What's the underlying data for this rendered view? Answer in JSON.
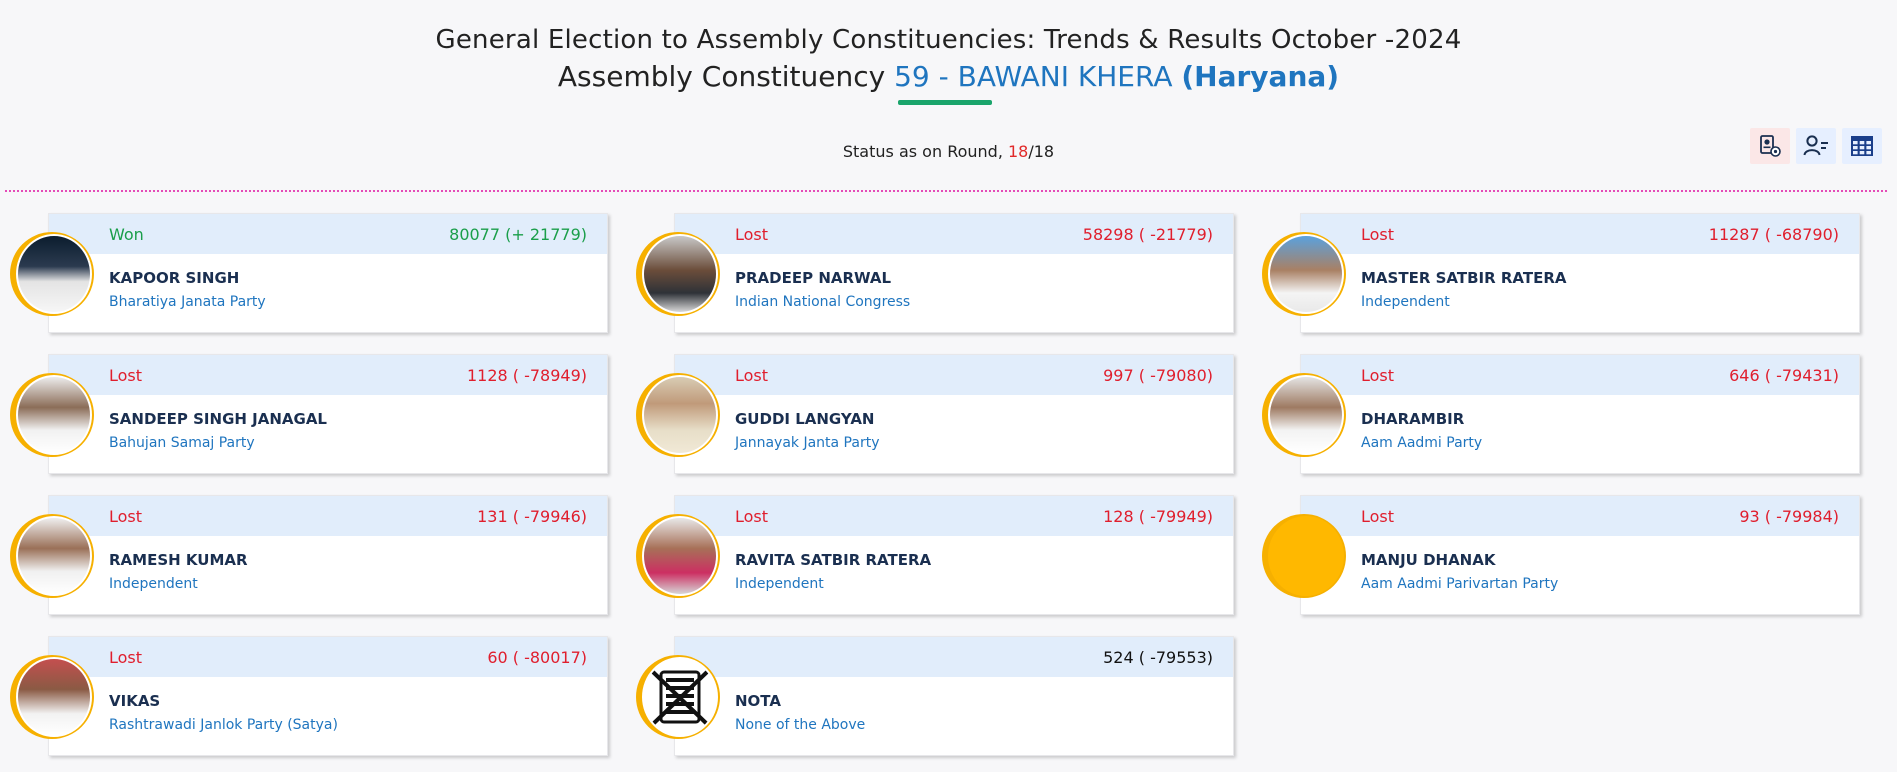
{
  "header": {
    "title_line1": "General Election to Assembly Constituencies: Trends & Results October -2024",
    "title_prefix": "Assembly Constituency",
    "constituency": "59 - BAWANI KHERA",
    "state": "(Haryana)"
  },
  "status": {
    "label": "Status as on Round,",
    "current_round": "18",
    "separator": "/",
    "total_rounds": "18"
  },
  "toolbar": {
    "icons": [
      "chart-settings-icon",
      "person-list-icon",
      "table-grid-icon"
    ]
  },
  "colors": {
    "won": "#1a9e4a",
    "lost": "#e01e2d",
    "accent_blue": "#1f75bf",
    "avatar_ring": "#f6b000",
    "band": "#e1edfb"
  },
  "candidates": [
    {
      "status": "Won",
      "votes": "80077 (+ 21779)",
      "name": "KAPOOR SINGH",
      "party": "Bharatiya Janata Party"
    },
    {
      "status": "Lost",
      "votes": "58298 ( -21779)",
      "name": "PRADEEP NARWAL",
      "party": "Indian National Congress"
    },
    {
      "status": "Lost",
      "votes": "11287 ( -68790)",
      "name": "MASTER SATBIR RATERA",
      "party": "Independent"
    },
    {
      "status": "Lost",
      "votes": "1128 ( -78949)",
      "name": "SANDEEP SINGH JANAGAL",
      "party": "Bahujan Samaj Party"
    },
    {
      "status": "Lost",
      "votes": "997 ( -79080)",
      "name": "GUDDI LANGYAN",
      "party": "Jannayak Janta Party"
    },
    {
      "status": "Lost",
      "votes": "646 ( -79431)",
      "name": "DHARAMBIR",
      "party": "Aam Aadmi Party"
    },
    {
      "status": "Lost",
      "votes": "131 ( -79946)",
      "name": "RAMESH KUMAR",
      "party": "Independent"
    },
    {
      "status": "Lost",
      "votes": "128 ( -79949)",
      "name": "RAVITA SATBIR RATERA",
      "party": "Independent"
    },
    {
      "status": "Lost",
      "votes": "93 ( -79984)",
      "name": "MANJU DHANAK",
      "party": "Aam Aadmi Parivartan Party"
    },
    {
      "status": "Lost",
      "votes": "60 ( -80017)",
      "name": "VIKAS",
      "party": "Rashtrawadi Janlok Party (Satya)"
    },
    {
      "status": "",
      "votes": "524 ( -79553)",
      "name": "NOTA",
      "party": "None of the Above"
    }
  ]
}
